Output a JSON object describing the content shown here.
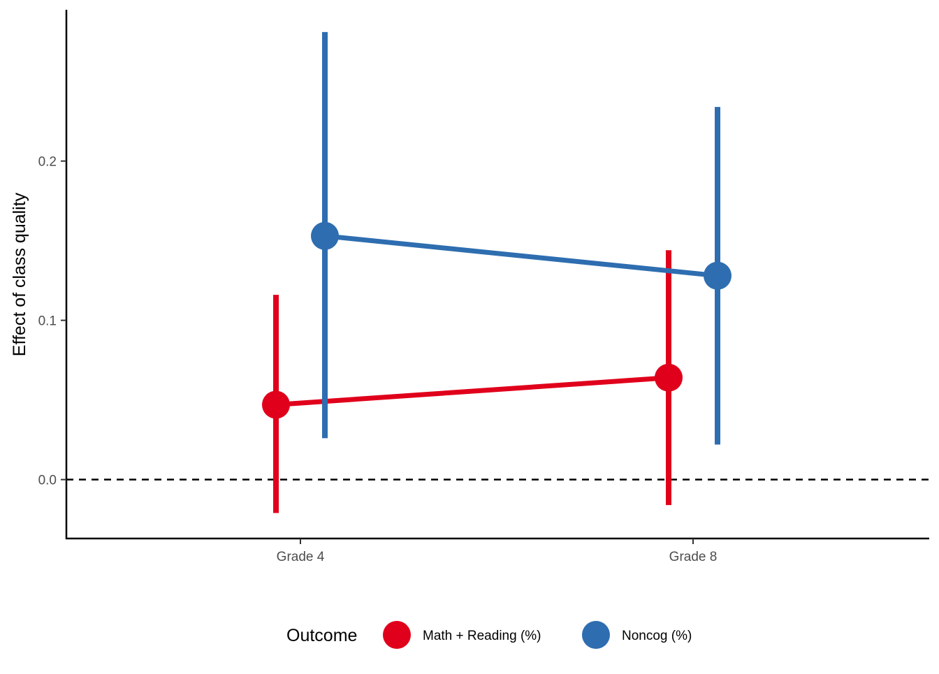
{
  "chart_data": {
    "type": "line",
    "title": "",
    "xlabel": "",
    "ylabel": "Effect of class quality",
    "categories": [
      "Grade 4",
      "Grade 8"
    ],
    "ylim": [
      -0.037,
      0.295
    ],
    "yticks": [
      0.0,
      0.1,
      0.2
    ],
    "ytick_labels": [
      "0.0",
      "0.1",
      "0.2"
    ],
    "reference_line": {
      "y": 0.0,
      "style": "dashed"
    },
    "grid": false,
    "legend": {
      "title": "Outcome",
      "position": "bottom"
    },
    "series": [
      {
        "name": "Math + Reading (%)",
        "color": "#E0001B",
        "values": [
          0.047,
          0.064
        ],
        "lower": [
          -0.021,
          -0.016
        ],
        "upper": [
          0.116,
          0.144
        ]
      },
      {
        "name": "Noncog (%)",
        "color": "#2E6DB0",
        "values": [
          0.153,
          0.128
        ],
        "lower": [
          0.026,
          0.022
        ],
        "upper": [
          0.281,
          0.234
        ]
      }
    ]
  }
}
